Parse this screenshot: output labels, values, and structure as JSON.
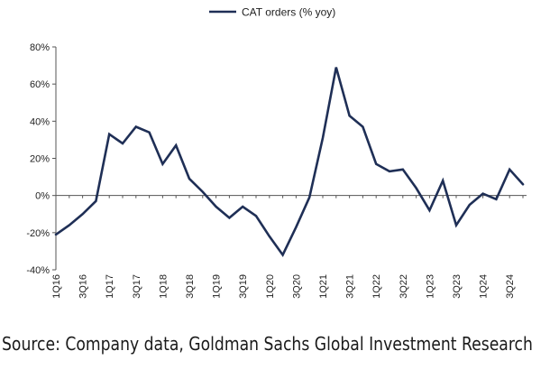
{
  "chart_data": {
    "type": "line",
    "title": "",
    "xlabel": "",
    "ylabel": "",
    "ylim": [
      -40,
      80
    ],
    "yticks": [
      -40,
      -20,
      0,
      20,
      40,
      60,
      80
    ],
    "ytick_labels": [
      "-40%",
      "-20%",
      "0%",
      "20%",
      "40%",
      "60%",
      "80%"
    ],
    "grid": false,
    "legend_position": "top-center",
    "categories": [
      "1Q16",
      "2Q16",
      "3Q16",
      "4Q16",
      "1Q17",
      "2Q17",
      "3Q17",
      "4Q17",
      "1Q18",
      "2Q18",
      "3Q18",
      "4Q18",
      "1Q19",
      "2Q19",
      "3Q19",
      "4Q19",
      "1Q20",
      "2Q20",
      "3Q20",
      "4Q20",
      "1Q21",
      "2Q21",
      "3Q21",
      "4Q21",
      "1Q22",
      "2Q22",
      "3Q22",
      "4Q22",
      "1Q23",
      "2Q23",
      "3Q23",
      "4Q23",
      "1Q24",
      "2Q24",
      "3Q24",
      "4Q24"
    ],
    "xtick_labels": [
      "1Q16",
      "3Q16",
      "1Q17",
      "3Q17",
      "1Q18",
      "3Q18",
      "1Q19",
      "3Q19",
      "1Q20",
      "3Q20",
      "1Q21",
      "3Q21",
      "1Q22",
      "3Q22",
      "1Q23",
      "3Q23",
      "1Q24",
      "3Q24"
    ],
    "series": [
      {
        "name": "CAT orders (% yoy)",
        "color": "#1f2f56",
        "values": [
          -21,
          -16,
          -10,
          -3,
          33,
          28,
          37,
          34,
          17,
          27,
          9,
          2,
          -6,
          -12,
          -6,
          -11,
          -22,
          -32,
          -17,
          -1,
          31,
          69,
          43,
          37,
          17,
          13,
          14,
          4,
          -8,
          8,
          -16,
          -5,
          1,
          -2,
          14,
          6
        ]
      }
    ]
  },
  "source_text": "Source: Company data, Goldman Sachs Global Investment Research"
}
